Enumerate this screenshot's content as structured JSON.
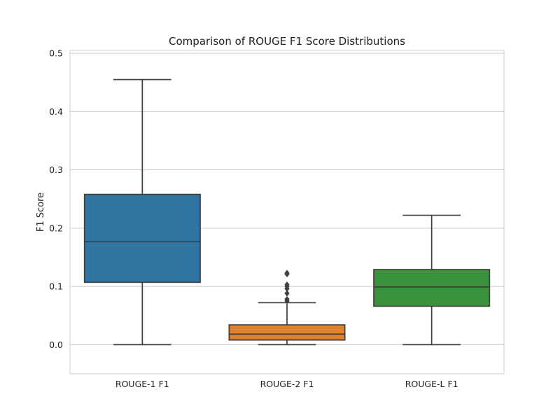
{
  "chart_data": {
    "type": "box",
    "title": "Comparison of ROUGE F1 Score Distributions",
    "xlabel": "",
    "ylabel": "F1 Score",
    "ylim": [
      -0.05,
      0.505
    ],
    "y_ticks": [
      0.0,
      0.1,
      0.2,
      0.3,
      0.4,
      0.5
    ],
    "y_tick_labels": [
      "0.0",
      "0.1",
      "0.2",
      "0.3",
      "0.4",
      "0.5"
    ],
    "grid": "horizontal",
    "categories": [
      "ROUGE-1 F1",
      "ROUGE-2 F1",
      "ROUGE-L F1"
    ],
    "boxes": [
      {
        "category": "ROUGE-1 F1",
        "whisker_low": 0.0,
        "q1": 0.107,
        "median": 0.177,
        "q3": 0.258,
        "whisker_high": 0.455,
        "outliers": [],
        "color": "#3274a1"
      },
      {
        "category": "ROUGE-2 F1",
        "whisker_low": 0.0,
        "q1": 0.008,
        "median": 0.018,
        "q3": 0.034,
        "whisker_high": 0.072,
        "outliers": [
          0.075,
          0.078,
          0.088,
          0.096,
          0.1,
          0.103,
          0.121,
          0.123
        ],
        "color": "#e1812c"
      },
      {
        "category": "ROUGE-L F1",
        "whisker_low": 0.0,
        "q1": 0.066,
        "median": 0.099,
        "q3": 0.129,
        "whisker_high": 0.222,
        "outliers": [],
        "color": "#3a923a"
      }
    ],
    "edge_color": "#3f3f3f",
    "grid_color": "#cccccc",
    "spine_color": "#cccccc"
  }
}
